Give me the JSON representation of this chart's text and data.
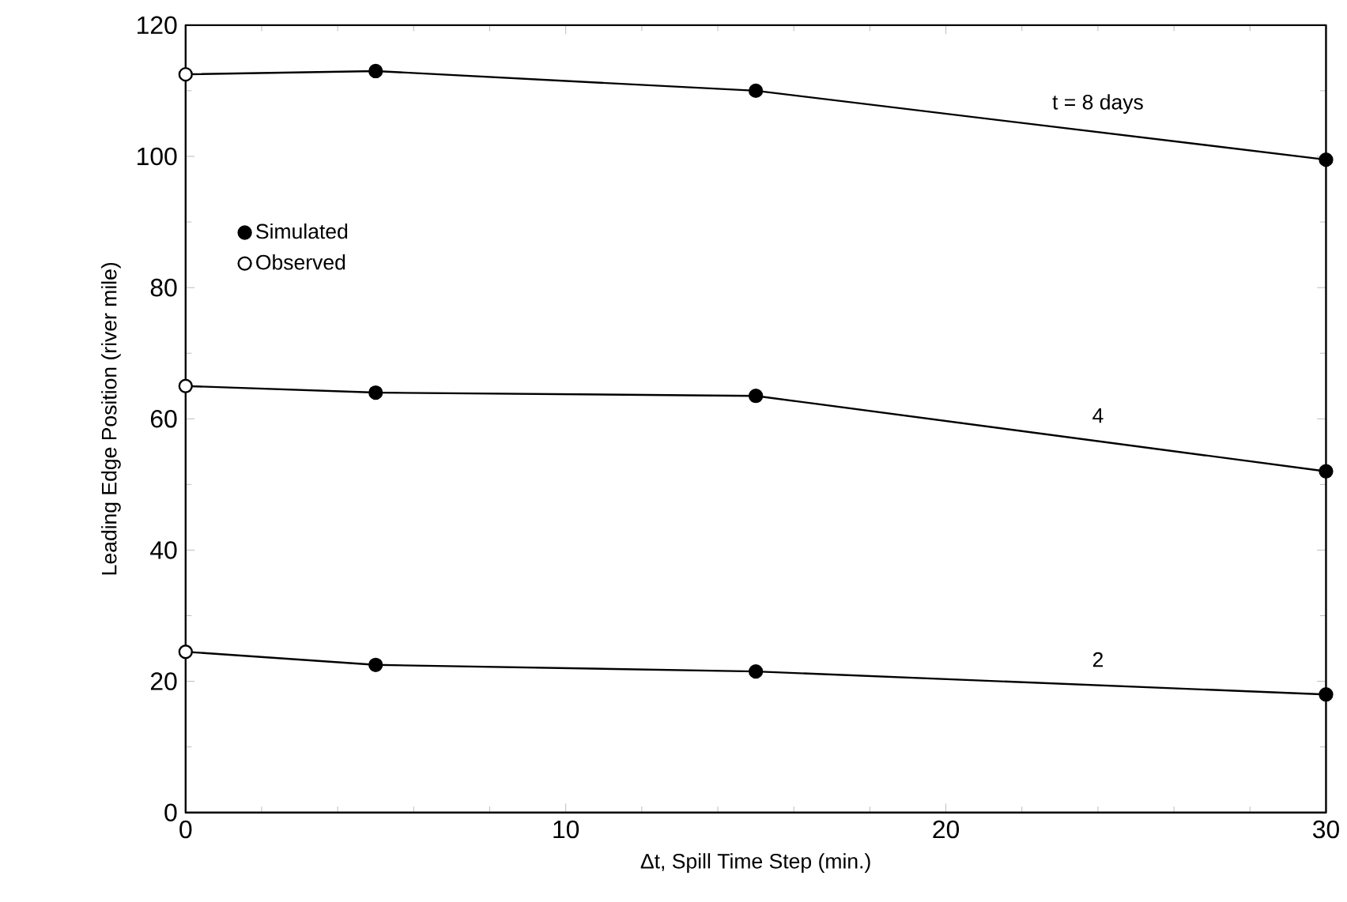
{
  "chart_data": {
    "type": "line",
    "xlabel": "Δt, Spill Time Step (min.)",
    "ylabel": "Leading Edge Position (river mile)",
    "xlim": [
      0,
      30
    ],
    "ylim": [
      0,
      120
    ],
    "xticks": [
      0,
      10,
      20,
      30
    ],
    "yticks": [
      0,
      20,
      40,
      60,
      80,
      100,
      120
    ],
    "series": [
      {
        "color": "#000000",
        "x": [
          0,
          5,
          15,
          30
        ],
        "values": [
          112.5,
          113,
          110,
          99.5
        ]
      },
      {
        "color": "#000000",
        "x": [
          0,
          5,
          15,
          30
        ],
        "values": [
          65,
          64,
          63.5,
          52
        ]
      },
      {
        "color": "#000000",
        "x": [
          0,
          5,
          15,
          30
        ],
        "values": [
          24.5,
          22.5,
          21.5,
          18
        ]
      },
      {
        "type": "scatter",
        "name": "Simulated",
        "color": "#000000",
        "marker": "circle",
        "x": [
          5,
          15,
          30,
          5,
          15,
          30,
          5,
          15,
          30
        ],
        "values": [
          113,
          110,
          99.5,
          64,
          63.5,
          52,
          22.5,
          21.5,
          18
        ]
      },
      {
        "type": "scatter",
        "name": "Observed",
        "color": "#ffffff",
        "marker": "circle",
        "x": [
          0,
          0,
          0
        ],
        "values": [
          112.5,
          65,
          24.5
        ]
      }
    ],
    "annotations": [
      "t = 8 days",
      "4",
      "2"
    ],
    "legend": "top left"
  }
}
